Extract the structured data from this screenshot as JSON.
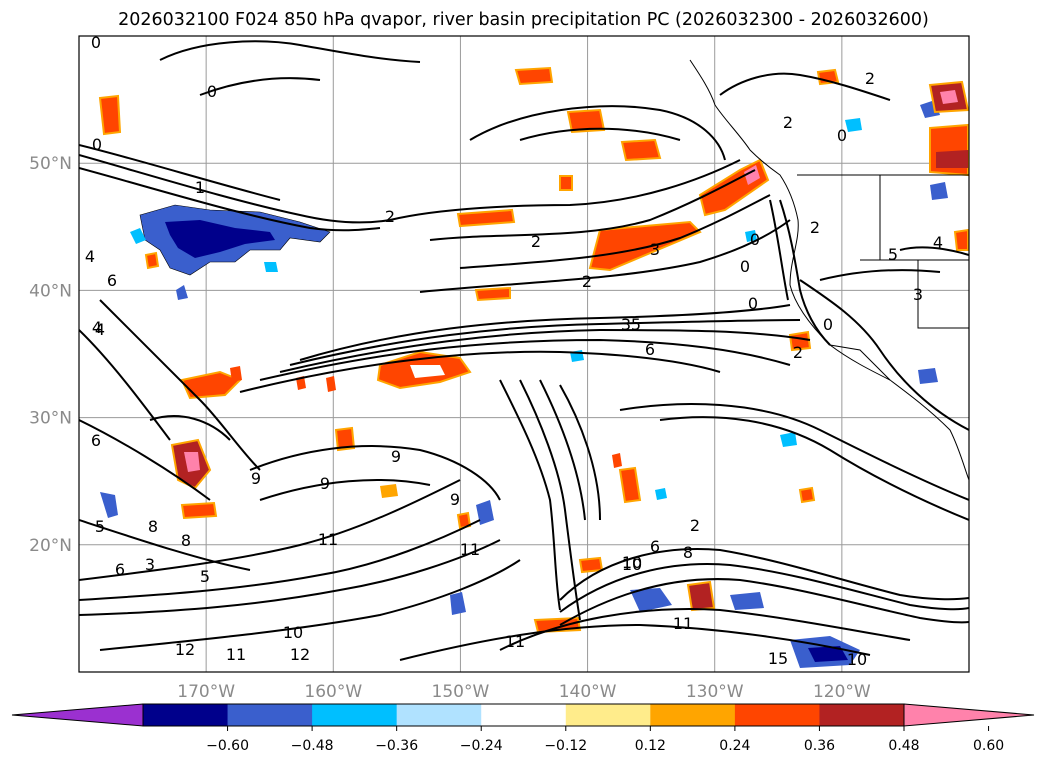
{
  "title": "2026032100 F024 850 hPa qvapor, river basin precipitation PC (2026032300 - 2026032600)",
  "map": {
    "lon_range": [
      -180,
      -110
    ],
    "lat_range": [
      10,
      60
    ],
    "lat_ticks": [
      {
        "value": 50,
        "label": "50°N"
      },
      {
        "value": 40,
        "label": "40°N"
      },
      {
        "value": 30,
        "label": "30°N"
      },
      {
        "value": 20,
        "label": "20°N"
      }
    ],
    "lon_ticks": [
      {
        "value": -170,
        "label": "170°W"
      },
      {
        "value": -160,
        "label": "160°W"
      },
      {
        "value": -150,
        "label": "150°W"
      },
      {
        "value": -140,
        "label": "140°W"
      },
      {
        "value": -130,
        "label": "130°W"
      },
      {
        "value": -120,
        "label": "120°W"
      }
    ],
    "contour_labels": [
      "0",
      "0",
      "0",
      "0",
      "1",
      "2",
      "2",
      "2",
      "2",
      "3",
      "4",
      "6",
      "4",
      "6",
      "9",
      "9",
      "9",
      "5",
      "6",
      "6",
      "8",
      "8",
      "5",
      "11",
      "10",
      "11",
      "12",
      "11",
      "11",
      "12",
      "10",
      "9",
      "8",
      "2",
      "3",
      "4",
      "5",
      "6",
      "3",
      "10",
      "11",
      "15",
      "10",
      "2",
      "0",
      "0",
      "0",
      "2",
      "5",
      "4",
      "3",
      "2",
      "0"
    ]
  },
  "colorbar": {
    "levels": [
      "−0.60",
      "−0.48",
      "−0.36",
      "−0.24",
      "−0.12",
      "0.12",
      "0.24",
      "0.36",
      "0.48",
      "0.60"
    ],
    "colors": [
      "#9b30d0",
      "#00008b",
      "#3a5fcd",
      "#00bfff",
      "#b0e2ff",
      "#ffffff",
      "#ffec8b",
      "#ffa500",
      "#ff4500",
      "#b22222",
      "#ff82ab"
    ]
  }
}
